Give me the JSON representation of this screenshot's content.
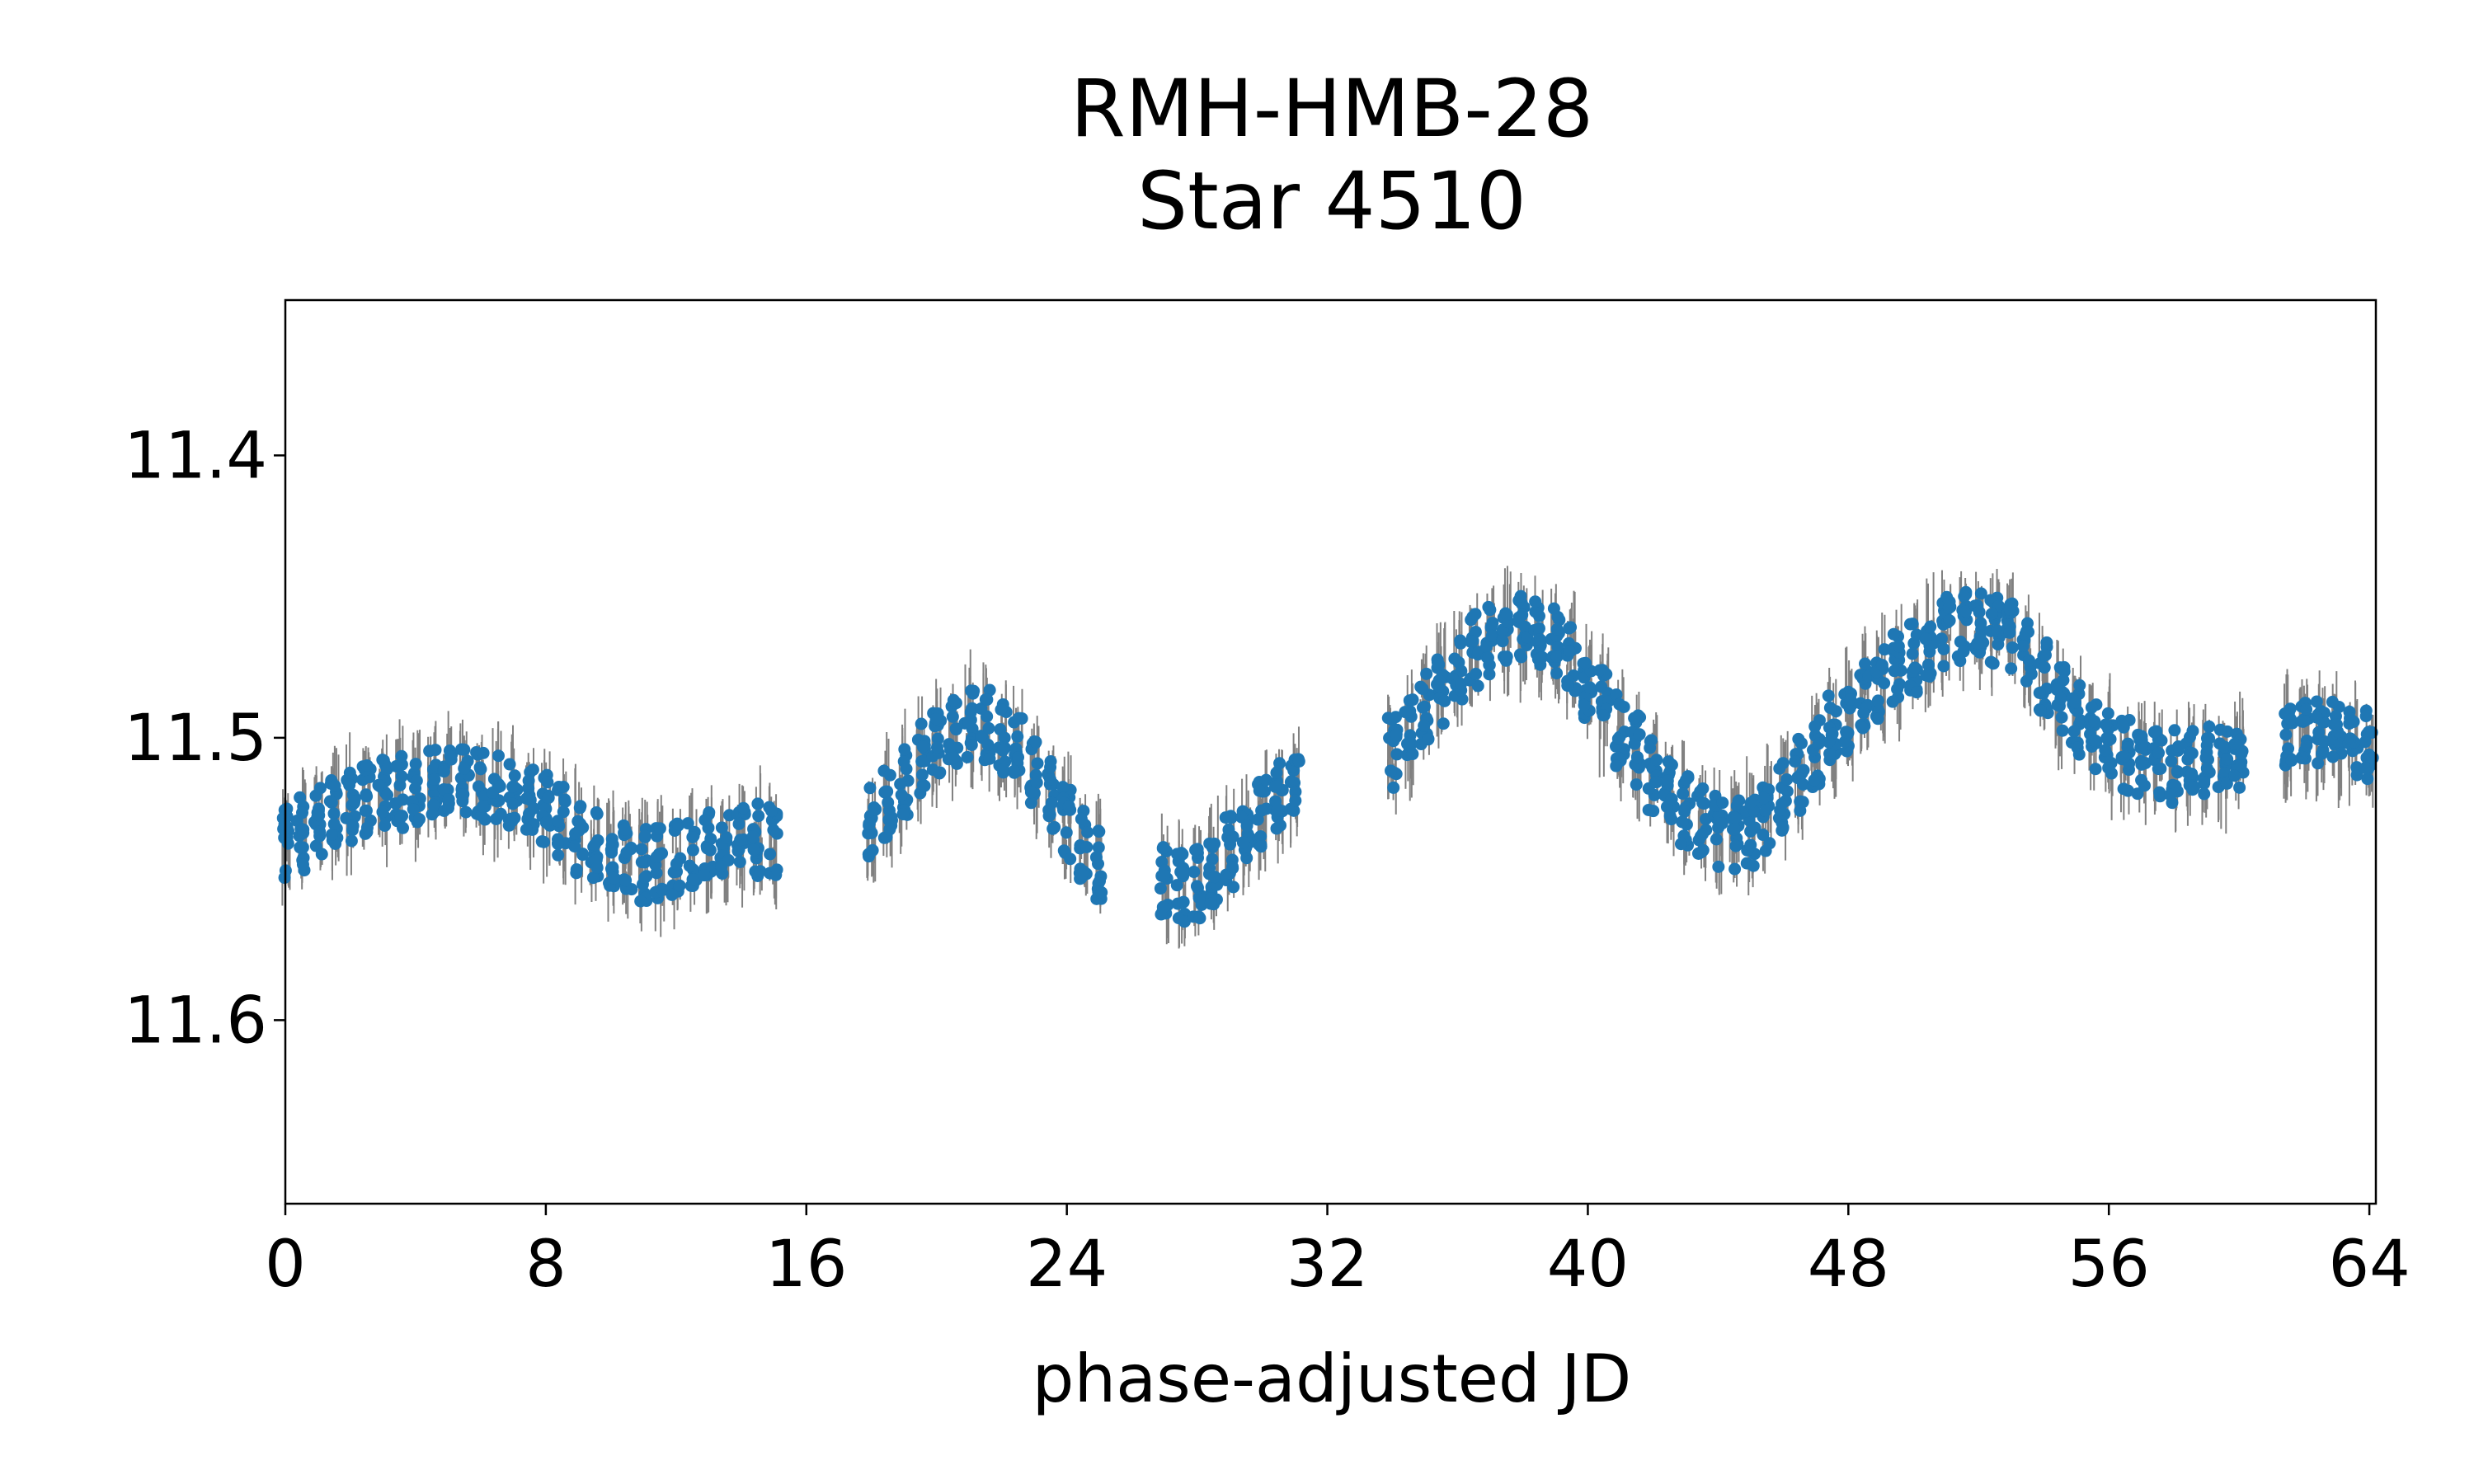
{
  "chart_data": {
    "type": "scatter",
    "title_lines": [
      "RMH-HMB-28",
      "Star 4510"
    ],
    "xlabel": "phase-adjusted JD",
    "ylabel": "",
    "xlim": [
      0,
      64.2
    ],
    "ylim": [
      11.665,
      11.345
    ],
    "y_inverted": true,
    "xticks": [
      0,
      8,
      16,
      24,
      32,
      40,
      48,
      56,
      64
    ],
    "xtick_labels": [
      "0",
      "8",
      "16",
      "24",
      "32",
      "40",
      "48",
      "56",
      "64"
    ],
    "yticks": [
      11.4,
      11.5,
      11.6
    ],
    "ytick_labels": [
      "11.4",
      "11.5",
      "11.6"
    ],
    "grid": false,
    "marker_color": "#1f77b4",
    "errorbar_color": "#808080",
    "series": [
      {
        "x": [
          0.0,
          0.5,
          1.0,
          1.5,
          2.0,
          2.5,
          3.0,
          3.5,
          4.0,
          4.5,
          5.0,
          5.5,
          6.0,
          6.5,
          7.0,
          7.5,
          8.0,
          8.5,
          9.0,
          9.5,
          10.0,
          10.5,
          11.0,
          11.5,
          12.0,
          12.5,
          13.0,
          13.5,
          14.0,
          14.5,
          15.0,
          18.0,
          18.5,
          19.0,
          19.5,
          20.0,
          20.5,
          21.0,
          21.5,
          22.0,
          22.5,
          23.0,
          23.5,
          24.0,
          24.5,
          25.0,
          27.0,
          27.5,
          28.0,
          28.5,
          29.0,
          29.5,
          30.0,
          30.5,
          31.0,
          34.0,
          34.5,
          35.0,
          35.5,
          36.0,
          36.5,
          37.0,
          37.5,
          38.0,
          38.5,
          39.0,
          39.5,
          40.0,
          40.5,
          41.0,
          41.5,
          42.0,
          42.5,
          43.0,
          43.5,
          44.0,
          44.5,
          45.0,
          45.5,
          46.0,
          46.5,
          47.0,
          47.5,
          48.0,
          48.5,
          49.0,
          49.5,
          50.0,
          50.5,
          51.0,
          51.5,
          52.0,
          52.5,
          53.0,
          53.5,
          54.0,
          54.5,
          55.0,
          55.5,
          56.0,
          56.5,
          57.0,
          57.5,
          58.0,
          58.5,
          59.0,
          59.5,
          60.0,
          61.5,
          62.0,
          62.5,
          63.0,
          63.5,
          64.0
        ],
        "y": [
          11.538,
          11.534,
          11.53,
          11.527,
          11.524,
          11.522,
          11.52,
          11.519,
          11.518,
          11.517,
          11.516,
          11.516,
          11.517,
          11.518,
          11.52,
          11.523,
          11.526,
          11.53,
          11.535,
          11.539,
          11.542,
          11.544,
          11.545,
          11.545,
          11.543,
          11.541,
          11.539,
          11.538,
          11.537,
          11.536,
          11.536,
          11.53,
          11.523,
          11.515,
          11.508,
          11.502,
          11.497,
          11.495,
          11.496,
          11.5,
          11.506,
          11.513,
          11.521,
          11.53,
          11.538,
          11.545,
          11.551,
          11.553,
          11.551,
          11.546,
          11.54,
          11.533,
          11.527,
          11.522,
          11.518,
          11.505,
          11.498,
          11.49,
          11.482,
          11.475,
          11.469,
          11.466,
          11.463,
          11.462,
          11.463,
          11.466,
          11.472,
          11.48,
          11.488,
          11.497,
          11.505,
          11.513,
          11.52,
          11.526,
          11.53,
          11.533,
          11.534,
          11.533,
          11.528,
          11.521,
          11.513,
          11.505,
          11.498,
          11.492,
          11.486,
          11.481,
          11.476,
          11.471,
          11.466,
          11.463,
          11.461,
          11.46,
          11.461,
          11.465,
          11.471,
          11.479,
          11.487,
          11.494,
          11.499,
          11.503,
          11.506,
          11.508,
          11.509,
          11.51,
          11.509,
          11.508,
          11.507,
          11.505,
          11.5,
          11.499,
          11.499,
          11.5,
          11.501,
          11.502
        ]
      }
    ]
  }
}
